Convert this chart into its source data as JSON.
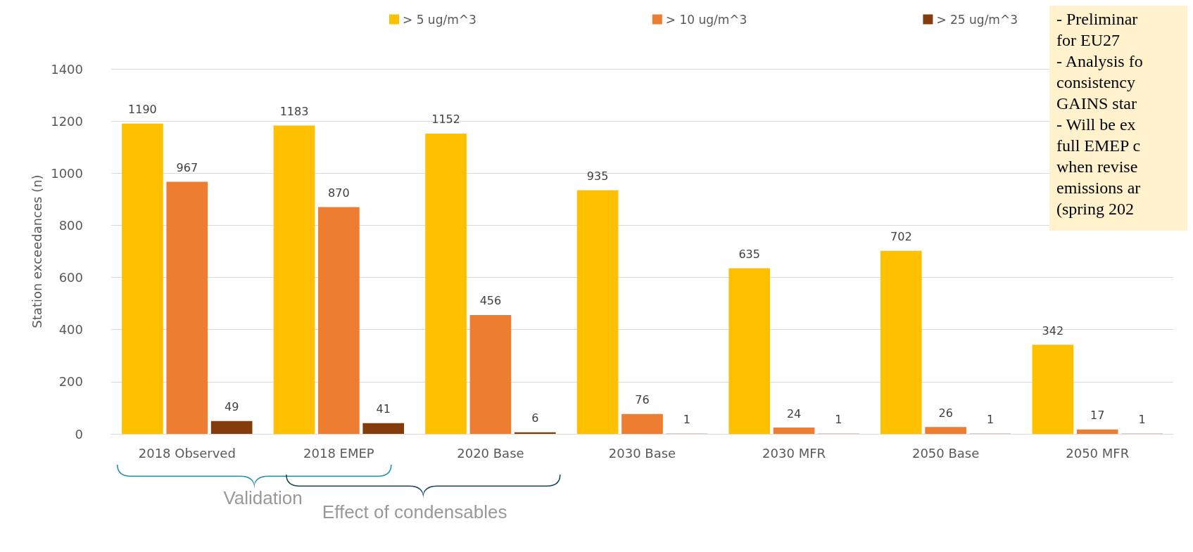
{
  "chart_data": {
    "type": "bar",
    "categories": [
      "2018 Observed",
      "2018 EMEP",
      "2020 Base",
      "2030 Base",
      "2030 MFR",
      "2050 Base",
      "2050 MFR"
    ],
    "series": [
      {
        "name": "> 5 ug/m^3",
        "color": "#ffc000",
        "values": [
          1190,
          1183,
          1152,
          935,
          635,
          702,
          342
        ]
      },
      {
        "name": "> 10 ug/m^3",
        "color": "#ed7d31",
        "values": [
          967,
          870,
          456,
          76,
          24,
          26,
          17
        ]
      },
      {
        "name": "> 25 ug/m^3",
        "color": "#843c0c",
        "values": [
          49,
          41,
          6,
          1,
          1,
          1,
          1
        ]
      }
    ],
    "ylabel": "Station exceedances (n)",
    "ylim": [
      0,
      1400
    ],
    "yticks": [
      0,
      200,
      400,
      600,
      800,
      1000,
      1200,
      1400
    ],
    "grid": "y",
    "legend": "top",
    "data_labels": true,
    "annotations": [
      "Validation",
      "Effect of condensables",
      "- Preliminar\nfor EU27\n- Analysis fo\nconsistency\nGAINS star\n- Will be ex\nfull EMEP c\nwhen revise\nemissions ar\n(spring 202"
    ]
  }
}
